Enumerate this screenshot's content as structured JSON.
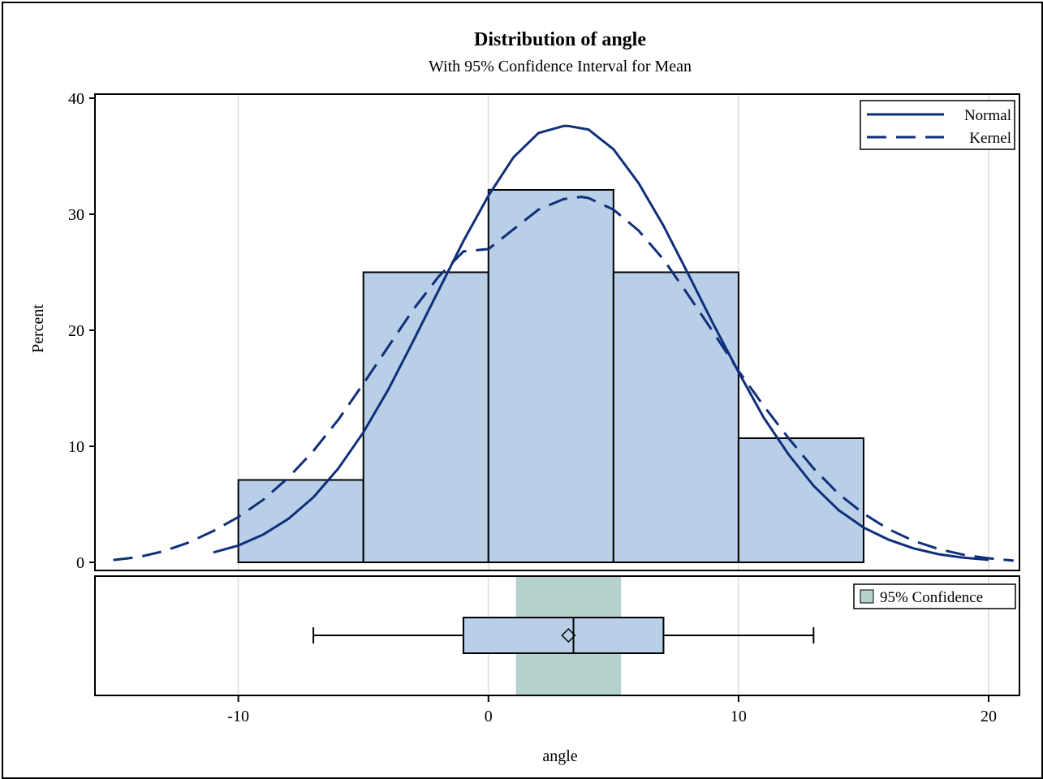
{
  "chart_data": [
    {
      "type": "histogram",
      "title": "Distribution of angle",
      "subtitle": "With 95% Confidence Interval for Mean",
      "xlabel": "angle",
      "ylabel": "Percent",
      "xlim": [
        -15.7,
        21.2
      ],
      "ylim": [
        0,
        40.5
      ],
      "x_ticks": [
        -10,
        0,
        10,
        20
      ],
      "y_ticks": [
        0,
        10,
        20,
        30,
        40
      ],
      "grid": "vertical",
      "bins": [
        {
          "from": -10,
          "to": -5,
          "value": 7.1
        },
        {
          "from": -5,
          "to": 0,
          "value": 25.0
        },
        {
          "from": 0,
          "to": 5,
          "value": 32.1
        },
        {
          "from": 5,
          "to": 10,
          "value": 25.0
        },
        {
          "from": 10,
          "to": 15,
          "value": 10.7
        }
      ],
      "series": [
        {
          "name": "Normal",
          "style": "solid",
          "x": [
            -11,
            -10,
            -9,
            -8,
            -7,
            -6,
            -5,
            -4,
            -3,
            -2,
            -1,
            0,
            1,
            2,
            3,
            3.2,
            4,
            5,
            6,
            7,
            8,
            9,
            10,
            11,
            12,
            13,
            14,
            15,
            16,
            17,
            18,
            19,
            20
          ],
          "y": [
            0.85,
            1.45,
            2.4,
            3.75,
            5.6,
            8.1,
            11.2,
            14.9,
            19.1,
            23.4,
            27.7,
            31.6,
            34.9,
            37.0,
            37.6,
            37.6,
            37.3,
            35.6,
            32.7,
            29.0,
            24.8,
            20.5,
            16.4,
            12.5,
            9.3,
            6.6,
            4.5,
            3.0,
            1.95,
            1.2,
            0.7,
            0.4,
            0.22
          ]
        },
        {
          "name": "Kernel",
          "style": "dashed",
          "x": [
            -15,
            -14,
            -13,
            -12,
            -11,
            -10,
            -9,
            -8,
            -7,
            -6,
            -5,
            -4,
            -3,
            -2,
            -1,
            0,
            1,
            2,
            3,
            3.7,
            4,
            5,
            6,
            7,
            8,
            9,
            10,
            11,
            12,
            13,
            14,
            15,
            16,
            17,
            18,
            19,
            20,
            21
          ],
          "y": [
            0.2,
            0.45,
            0.95,
            1.7,
            2.7,
            3.9,
            5.4,
            7.3,
            9.6,
            12.3,
            15.4,
            18.6,
            21.8,
            24.6,
            26.8,
            27.0,
            28.7,
            30.4,
            31.3,
            31.5,
            31.4,
            30.4,
            28.6,
            26.1,
            23.0,
            19.8,
            16.5,
            13.5,
            10.7,
            8.1,
            5.9,
            4.2,
            2.85,
            1.85,
            1.15,
            0.65,
            0.35,
            0.15
          ]
        }
      ],
      "legend": {
        "position": "top-right",
        "items": [
          "Normal",
          "Kernel"
        ]
      }
    },
    {
      "type": "boxplot",
      "whisker_low": -7,
      "q1": -1,
      "median": 3.4,
      "mean": 3.2,
      "q3": 7,
      "whisker_high": 13,
      "ci_mean": [
        1.1,
        5.3
      ],
      "legend": {
        "position": "top-right",
        "items": [
          "95% Confidence"
        ]
      }
    }
  ],
  "colors": {
    "bar_fill": "#b9cfe7",
    "curve": "#0f2f7a",
    "ci_fill": "#b5d1ce",
    "grid": "#e4e4e4"
  },
  "texts": {
    "title": "Distribution of angle",
    "subtitle": "With 95% Confidence Interval for Mean",
    "xlabel": "angle",
    "ylabel": "Percent",
    "legend_normal": "Normal",
    "legend_kernel": "Kernel",
    "legend_ci": "95% Confidence"
  }
}
